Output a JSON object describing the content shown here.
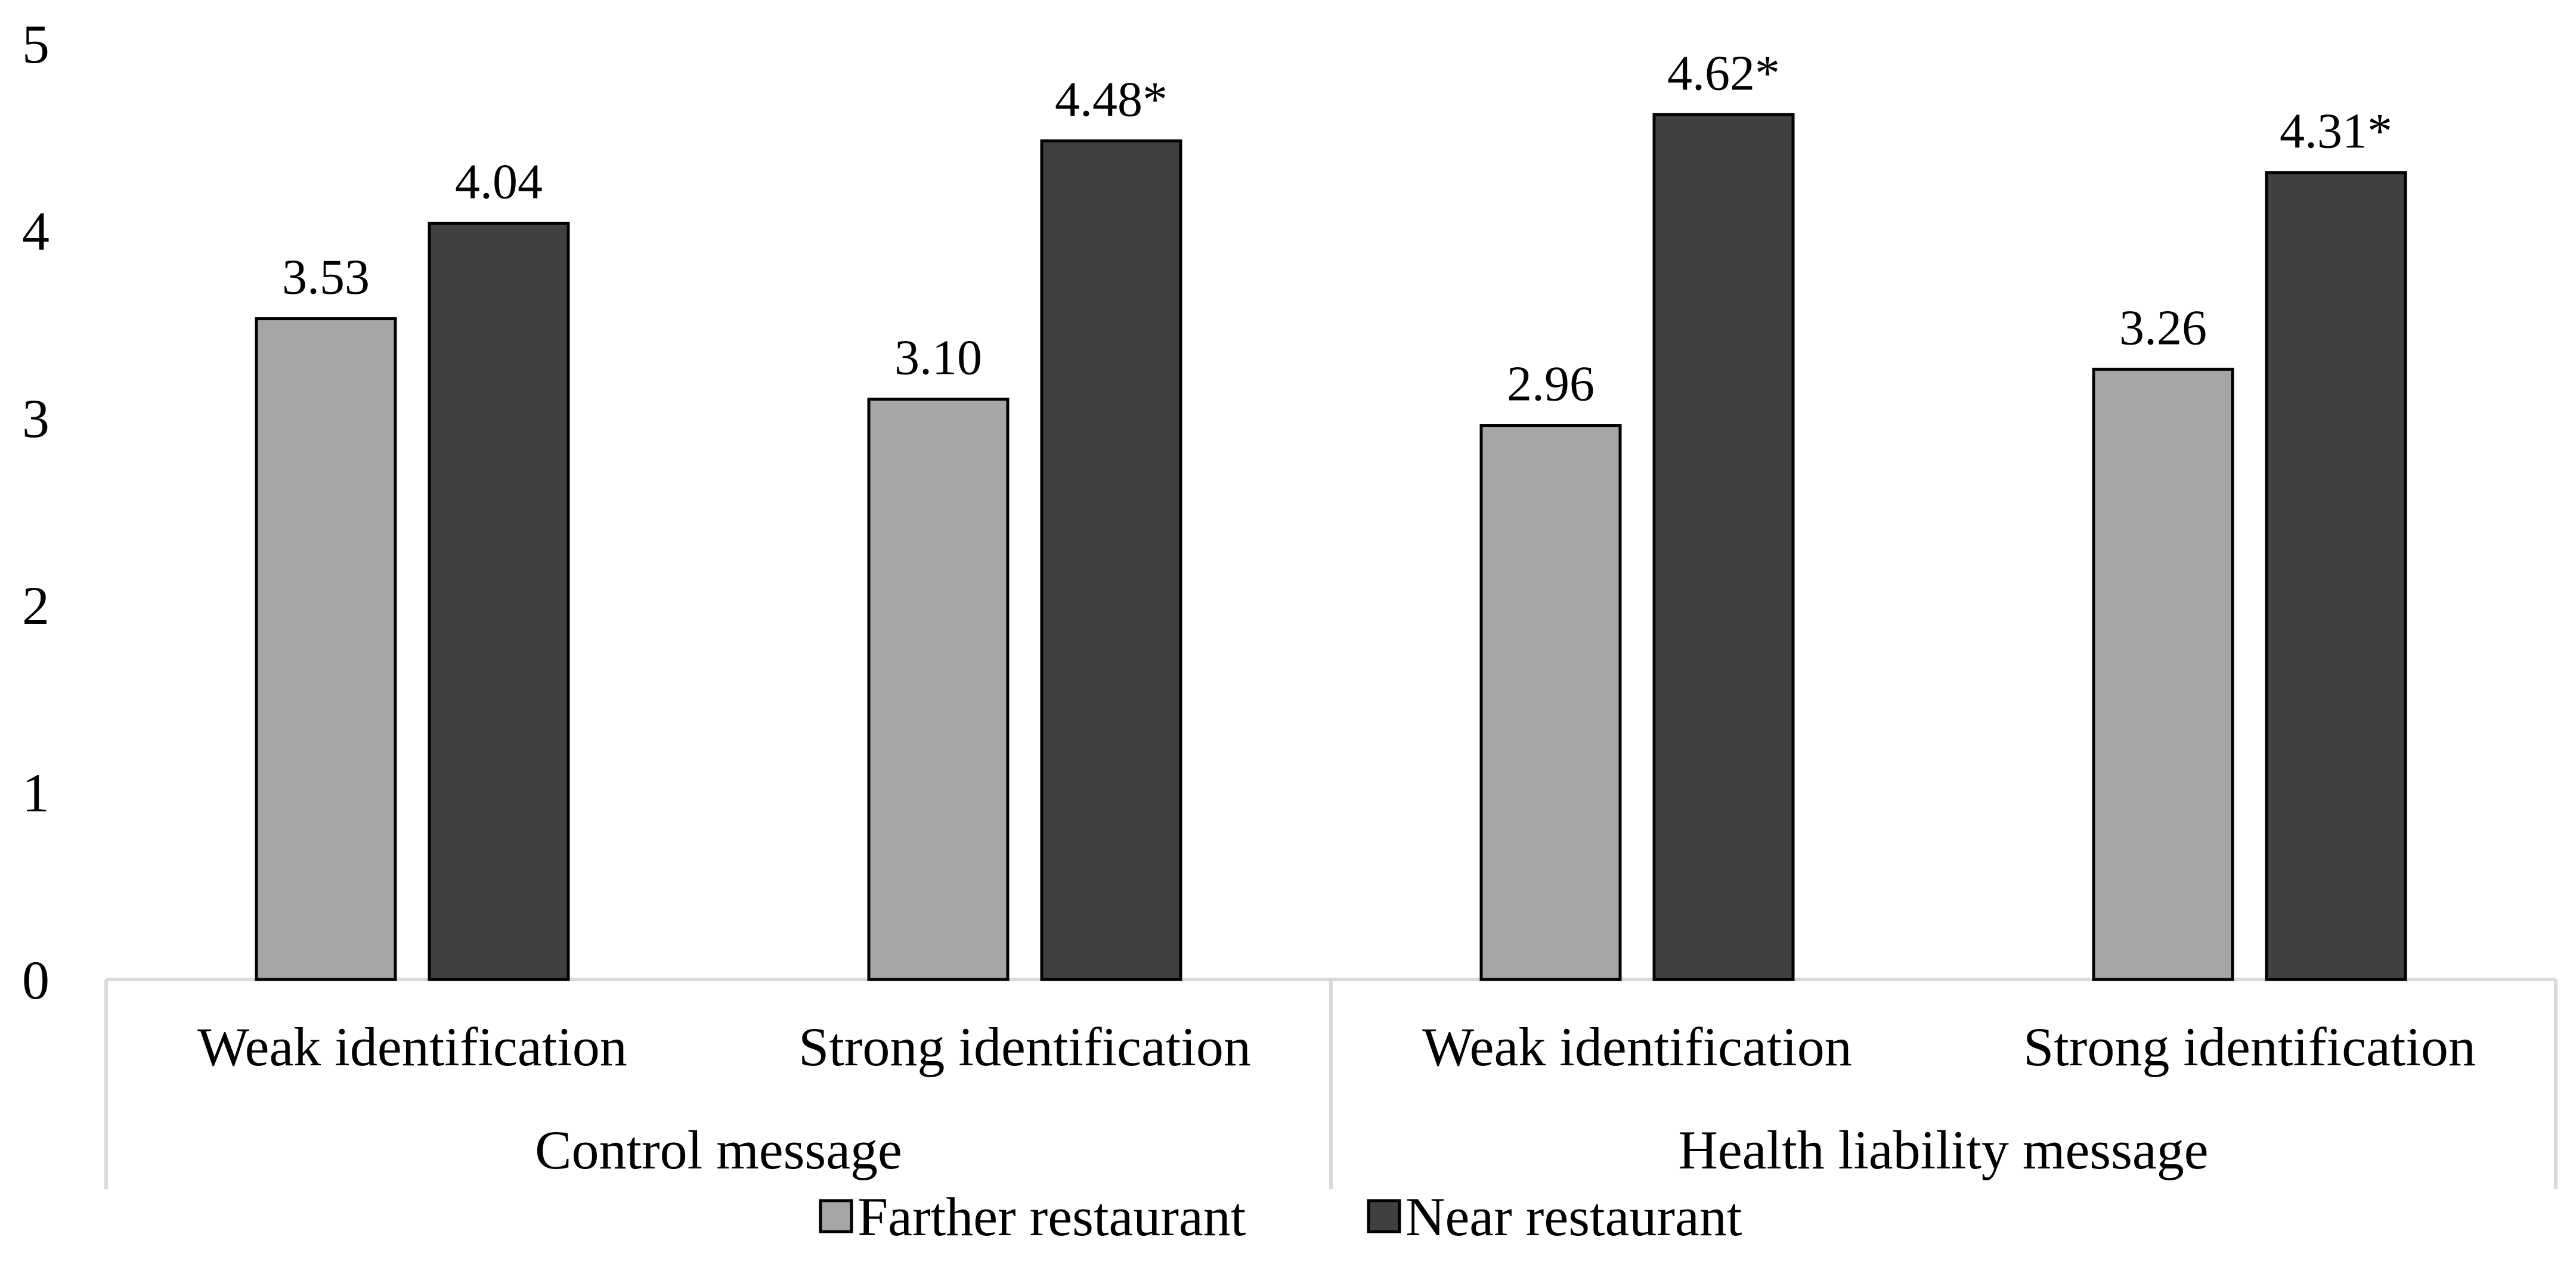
{
  "chart_data": {
    "type": "bar",
    "title": "",
    "xlabel": "",
    "ylabel": "",
    "ylim": [
      0,
      5
    ],
    "yticks": [
      "0",
      "1",
      "2",
      "3",
      "4",
      "5"
    ],
    "grid": false,
    "legend_position": "bottom",
    "groups": [
      {
        "label": "Control message",
        "categories": [
          {
            "label": "Weak identification",
            "bars": [
              {
                "series": "Farther restaurant",
                "value": 3.53,
                "label": "3.53"
              },
              {
                "series": "Near restaurant",
                "value": 4.04,
                "label": "4.04"
              }
            ]
          },
          {
            "label": "Strong identification",
            "bars": [
              {
                "series": "Farther restaurant",
                "value": 3.1,
                "label": "3.10"
              },
              {
                "series": "Near restaurant",
                "value": 4.48,
                "label": "4.48*"
              }
            ]
          }
        ]
      },
      {
        "label": "Health liability message",
        "categories": [
          {
            "label": "Weak identification",
            "bars": [
              {
                "series": "Farther restaurant",
                "value": 2.96,
                "label": "2.96"
              },
              {
                "series": "Near restaurant",
                "value": 4.62,
                "label": "4.62*"
              }
            ]
          },
          {
            "label": "Strong identification",
            "bars": [
              {
                "series": "Farther restaurant",
                "value": 3.26,
                "label": "3.26"
              },
              {
                "series": "Near restaurant",
                "value": 4.31,
                "label": "4.31*"
              }
            ]
          }
        ]
      }
    ],
    "series": [
      {
        "name": "Farther restaurant",
        "color": "#a6a6a6"
      },
      {
        "name": "Near restaurant",
        "color": "#404040"
      }
    ]
  }
}
